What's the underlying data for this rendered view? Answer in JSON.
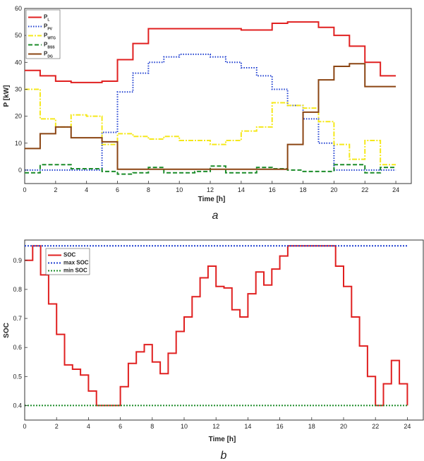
{
  "chart_data": [
    {
      "type": "line",
      "step": true,
      "panel_label": "a",
      "xlabel": "Time [h]",
      "ylabel": "P [kW]",
      "xlim": [
        0,
        25
      ],
      "ylim": [
        -5,
        60
      ],
      "xticks": [
        0,
        2,
        4,
        6,
        8,
        10,
        12,
        14,
        16,
        18,
        20,
        22,
        24
      ],
      "yticks": [
        0,
        10,
        20,
        30,
        40,
        50,
        60
      ],
      "grid": false,
      "legend_position": "top-left",
      "hours": [
        0,
        1,
        2,
        3,
        4,
        5,
        6,
        7,
        8,
        9,
        10,
        11,
        12,
        13,
        14,
        15,
        16,
        17,
        18,
        19,
        20,
        21,
        22,
        23,
        24
      ],
      "series": [
        {
          "name": "P",
          "sub": "L",
          "color": "#e02020",
          "dash": "",
          "values": [
            37,
            35,
            33,
            32.5,
            32.5,
            33,
            41,
            47,
            52.5,
            52.5,
            52.5,
            52.5,
            52.5,
            52.5,
            52,
            52,
            54.5,
            55,
            55,
            53,
            50,
            46,
            40,
            35,
            35
          ]
        },
        {
          "name": "P",
          "sub": "PV",
          "color": "#1f3fd0",
          "dash": "1.5,2",
          "values": [
            0,
            0,
            0,
            0,
            0,
            14,
            29,
            36,
            40,
            42,
            43,
            43,
            42,
            40,
            38,
            35,
            30,
            24,
            19,
            10,
            0,
            0,
            0,
            0,
            0
          ]
        },
        {
          "name": "P",
          "sub": "WTG",
          "color": "#f5e81a",
          "dash": "7,2,2,2",
          "values": [
            30,
            19,
            16,
            20.5,
            20,
            9.5,
            13.5,
            12.5,
            11.5,
            12.5,
            11,
            11,
            9.5,
            11,
            14.5,
            16,
            25,
            24,
            23,
            18,
            9.5,
            4,
            11,
            2,
            2
          ]
        },
        {
          "name": "P",
          "sub": "BSS",
          "color": "#1c8c2a",
          "dash": "6,3",
          "values": [
            -1,
            2,
            2,
            0.5,
            0.5,
            -0.5,
            -1.5,
            -1,
            1,
            -1,
            -1,
            -0.5,
            1.5,
            -1,
            -1,
            1,
            0.5,
            0,
            -0.5,
            -0.5,
            2,
            2,
            -1,
            1,
            1
          ]
        },
        {
          "name": "P",
          "sub": "DG",
          "color": "#8b4513",
          "dash": "",
          "values": [
            8,
            13.5,
            16,
            12,
            12,
            10.5,
            0.3,
            0.3,
            0.3,
            0.3,
            0.3,
            0.3,
            0.3,
            0.3,
            0.3,
            0.3,
            0.3,
            9.5,
            21.5,
            33.5,
            38.5,
            39.5,
            31,
            31,
            31
          ]
        }
      ]
    },
    {
      "type": "line",
      "step": true,
      "panel_label": "b",
      "xlabel": "Time [h]",
      "ylabel": "SOC",
      "xlim": [
        0,
        25
      ],
      "ylim": [
        0.35,
        0.97
      ],
      "xticks": [
        0,
        2,
        4,
        6,
        8,
        10,
        12,
        14,
        16,
        18,
        20,
        22,
        24
      ],
      "yticks": [
        0.4,
        0.5,
        0.6,
        0.7,
        0.8,
        0.9
      ],
      "grid": false,
      "legend_position": "top-left",
      "half_hours": [
        0,
        0.5,
        1,
        1.5,
        2,
        2.5,
        3,
        3.5,
        4,
        4.5,
        5,
        5.5,
        6,
        6.5,
        7,
        7.5,
        8,
        8.5,
        9,
        9.5,
        10,
        10.5,
        11,
        11.5,
        12,
        12.5,
        13,
        13.5,
        14,
        14.5,
        15,
        15.5,
        16,
        16.5,
        17,
        17.5,
        18,
        18.5,
        19,
        19.5,
        20,
        20.5,
        21,
        21.5,
        22,
        22.5,
        23,
        23.5,
        24
      ],
      "series": [
        {
          "name": "SOC",
          "color": "#e02020",
          "dash": "",
          "values": [
            0.9,
            0.95,
            0.85,
            0.75,
            0.645,
            0.54,
            0.525,
            0.505,
            0.45,
            0.4,
            0.4,
            0.4,
            0.465,
            0.545,
            0.585,
            0.61,
            0.55,
            0.51,
            0.58,
            0.655,
            0.705,
            0.775,
            0.84,
            0.88,
            0.81,
            0.805,
            0.73,
            0.705,
            0.785,
            0.86,
            0.815,
            0.87,
            0.915,
            0.95,
            0.95,
            0.95,
            0.95,
            0.95,
            0.95,
            0.88,
            0.81,
            0.705,
            0.605,
            0.5,
            0.4,
            0.475,
            0.555,
            0.475,
            0.4
          ]
        },
        {
          "name": "max SOC",
          "color": "#1f3fd0",
          "dash": "2,2",
          "constant": 0.95
        },
        {
          "name": "min SOC",
          "color": "#1c8c2a",
          "dash": "2,2",
          "constant": 0.4
        }
      ]
    }
  ]
}
